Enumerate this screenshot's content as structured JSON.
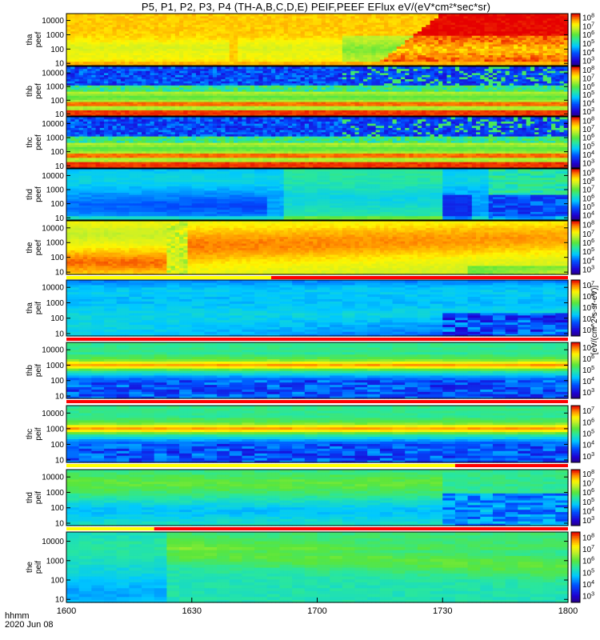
{
  "title": "P5, P1, P2, P3, P4 (TH-A,B,C,D,E) PEIF,PEEF EFlux eV/(eV*cm²*sec*sr)",
  "footer": {
    "line1": "hhmm",
    "line2": "2020 Jun 08"
  },
  "colorbar_label": "[eV/(cm^2-s-sr-eV)]",
  "colors": {
    "low": "#1a00c0",
    "mid": "#10c8ff",
    "green": "#50e040",
    "yellow": "#fff000",
    "high": "#e00000",
    "bar_yellow": "#ffff00",
    "bar_red": "#ff0000"
  },
  "chart_data": {
    "type": "heatmap",
    "x": {
      "tick_labels": [
        "1600",
        "1630",
        "1700",
        "1730",
        "1800"
      ],
      "range_hhmm": [
        "1600",
        "1800"
      ]
    },
    "y": {
      "scale": "log",
      "tick_labels": [
        "10",
        "100",
        "1000",
        "10000"
      ],
      "range": [
        7,
        30000
      ]
    },
    "panels": [
      {
        "name": "tha\npeef",
        "cbar_exps": [
          "3",
          "4",
          "5",
          "6",
          "7",
          "8"
        ],
        "kind": "electron_a"
      },
      {
        "name": "thb\npeef",
        "cbar_exps": [
          "3",
          "4",
          "5",
          "6",
          "7",
          "8"
        ],
        "kind": "electron_sw"
      },
      {
        "name": "thc\npeef",
        "cbar_exps": [
          "3",
          "4",
          "5",
          "6",
          "7",
          "8"
        ],
        "kind": "electron_sw"
      },
      {
        "name": "thd\npeef",
        "cbar_exps": [
          "4",
          "5",
          "6",
          "7",
          "8",
          "9"
        ],
        "kind": "electron_d"
      },
      {
        "name": "the\npeef",
        "cbar_exps": [
          "3",
          "4",
          "5",
          "6",
          "7",
          "8"
        ],
        "kind": "electron_e"
      },
      {
        "name": "tha\npeif",
        "cbar_exps": [
          "3",
          "4",
          "5",
          "6",
          "7"
        ],
        "kind": "ion_a"
      },
      {
        "name": "thb\npeif",
        "cbar_exps": [
          "3",
          "4",
          "5",
          "6",
          "7"
        ],
        "kind": "ion_sw"
      },
      {
        "name": "thc\npeif",
        "cbar_exps": [
          "3",
          "4",
          "5",
          "6",
          "7"
        ],
        "kind": "ion_sw"
      },
      {
        "name": "thd\npeif",
        "cbar_exps": [
          "3",
          "4",
          "5",
          "6",
          "7",
          "8"
        ],
        "kind": "ion_d"
      },
      {
        "name": "the\npeif",
        "cbar_exps": [
          "3",
          "4",
          "5",
          "6",
          "7",
          "8"
        ],
        "kind": "ion_e"
      }
    ],
    "mode_bars": [
      {
        "after_panel": 4,
        "segments": [
          {
            "from": "1600",
            "to": "1649",
            "color": "yellow"
          },
          {
            "from": "1649",
            "to": "1800",
            "color": "red"
          }
        ]
      },
      {
        "after_panel": 5,
        "segments": [
          {
            "from": "1600",
            "to": "1800",
            "color": "red"
          }
        ]
      },
      {
        "after_panel": 6,
        "segments": [
          {
            "from": "1600",
            "to": "1800",
            "color": "red"
          }
        ]
      },
      {
        "after_panel": 7,
        "segments": [
          {
            "from": "1600",
            "to": "1733",
            "color": "yellow"
          },
          {
            "from": "1733",
            "to": "1800",
            "color": "red"
          }
        ]
      },
      {
        "after_panel": 8,
        "segments": [
          {
            "from": "1600",
            "to": "1621",
            "color": "yellow"
          },
          {
            "from": "1621",
            "to": "1800",
            "color": "red"
          }
        ]
      }
    ]
  }
}
